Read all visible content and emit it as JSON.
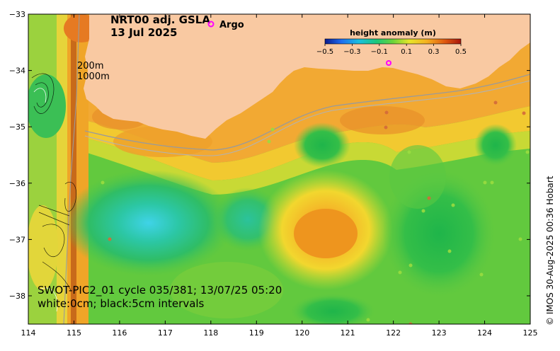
{
  "map": {
    "title_line1": "NRT00 adj. GSLA",
    "title_line2": "13 Jul 2025",
    "argo_label": "Argo",
    "isobath_200": "200m",
    "isobath_1000": "1000m",
    "swot_line1": "SWOT-PIC2_01 cycle 035/381; 13/07/25 05:20",
    "swot_line2": "white:0cm; black:5cm intervals",
    "credit": "© IMOS 30-Aug-2025 00:36 Hobart",
    "colorbar": {
      "title": "height anomaly (m)",
      "ticks": [
        "−0.5",
        "−0.3",
        "−0.1",
        "0.1",
        "0.3",
        "0.5"
      ],
      "range": [
        -0.5,
        0.5
      ]
    },
    "x_ticks": [
      "114",
      "115",
      "116",
      "117",
      "118",
      "119",
      "120",
      "121",
      "122",
      "123",
      "124",
      "125"
    ],
    "y_ticks": [
      "−33",
      "−34",
      "−35",
      "−36",
      "−37",
      "−38"
    ],
    "colors": {
      "land": "#f9c9a2",
      "argo_marker": "#ff00ff",
      "isobath": "#9a9a9a"
    }
  }
}
